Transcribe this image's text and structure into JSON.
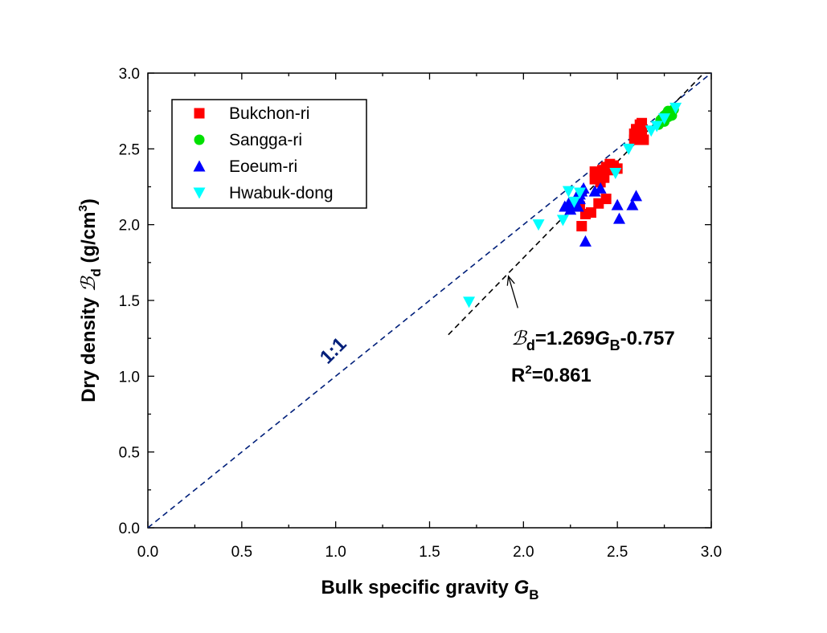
{
  "chart_data": {
    "type": "scatter",
    "title": "",
    "xlabel": {
      "main": "Bulk specific gravity ",
      "var": "G",
      "sub": "B"
    },
    "ylabel": {
      "main": "Dry density ",
      "sym": "ℬ",
      "sub": "d",
      "unit_pre": " (g/cm",
      "sup": "3",
      "unit_post": ")"
    },
    "xlim": [
      0.0,
      3.0
    ],
    "ylim": [
      0.0,
      3.0
    ],
    "x_ticks": [
      "0.0",
      "0.5",
      "1.0",
      "1.5",
      "2.0",
      "2.5",
      "3.0"
    ],
    "y_ticks": [
      "0.0",
      "0.5",
      "1.0",
      "1.5",
      "2.0",
      "2.5",
      "3.0"
    ],
    "grid": false,
    "legend_position": "top-left",
    "series": [
      {
        "name": "Bukchon-ri",
        "marker": "square",
        "color": "#ff0000",
        "points": [
          [
            2.31,
            1.99
          ],
          [
            2.33,
            2.07
          ],
          [
            2.36,
            2.08
          ],
          [
            2.4,
            2.14
          ],
          [
            2.44,
            2.17
          ],
          [
            2.3,
            2.12
          ],
          [
            2.38,
            2.3
          ],
          [
            2.4,
            2.33
          ],
          [
            2.42,
            2.36
          ],
          [
            2.44,
            2.38
          ],
          [
            2.38,
            2.35
          ],
          [
            2.46,
            2.4
          ],
          [
            2.48,
            2.39
          ],
          [
            2.43,
            2.31
          ],
          [
            2.41,
            2.28
          ],
          [
            2.47,
            2.36
          ],
          [
            2.5,
            2.37
          ],
          [
            2.59,
            2.6
          ],
          [
            2.6,
            2.63
          ],
          [
            2.62,
            2.66
          ],
          [
            2.63,
            2.61
          ],
          [
            2.64,
            2.56
          ],
          [
            2.61,
            2.58
          ],
          [
            2.59,
            2.56
          ],
          [
            2.63,
            2.67
          ]
        ]
      },
      {
        "name": "Sangga-ri",
        "marker": "circle",
        "color": "#00e000",
        "points": [
          [
            2.72,
            2.66
          ],
          [
            2.73,
            2.69
          ],
          [
            2.74,
            2.7
          ],
          [
            2.75,
            2.72
          ],
          [
            2.76,
            2.73
          ],
          [
            2.77,
            2.75
          ],
          [
            2.78,
            2.74
          ],
          [
            2.79,
            2.72
          ],
          [
            2.75,
            2.68
          ],
          [
            2.77,
            2.71
          ],
          [
            2.8,
            2.76
          ]
        ]
      },
      {
        "name": "Eoeum-ri",
        "marker": "triangle-up",
        "color": "#0000ff",
        "points": [
          [
            2.22,
            2.12
          ],
          [
            2.24,
            2.14
          ],
          [
            2.25,
            2.13
          ],
          [
            2.27,
            2.15
          ],
          [
            2.28,
            2.18
          ],
          [
            2.3,
            2.2
          ],
          [
            2.31,
            2.22
          ],
          [
            2.32,
            2.24
          ],
          [
            2.29,
            2.12
          ],
          [
            2.33,
            1.89
          ],
          [
            2.38,
            2.22
          ],
          [
            2.41,
            2.24
          ],
          [
            2.5,
            2.13
          ],
          [
            2.51,
            2.04
          ],
          [
            2.58,
            2.13
          ],
          [
            2.6,
            2.19
          ],
          [
            2.25,
            2.1
          ],
          [
            2.3,
            2.17
          ]
        ]
      },
      {
        "name": "Hwabuk-dong",
        "marker": "triangle-down",
        "color": "#00ffff",
        "points": [
          [
            1.71,
            1.49
          ],
          [
            2.08,
            2.0
          ],
          [
            2.21,
            2.03
          ],
          [
            2.24,
            2.22
          ],
          [
            2.27,
            2.15
          ],
          [
            2.3,
            2.21
          ],
          [
            2.49,
            2.34
          ],
          [
            2.56,
            2.5
          ],
          [
            2.68,
            2.62
          ],
          [
            2.71,
            2.65
          ],
          [
            2.75,
            2.7
          ],
          [
            2.81,
            2.77
          ]
        ]
      }
    ],
    "lines": [
      {
        "name": "1:1",
        "x": [
          0.0,
          3.0
        ],
        "y": [
          0.0,
          3.0
        ],
        "style": "dashed",
        "color": "#001f7a"
      },
      {
        "name": "fit",
        "x": [
          1.6,
          2.96
        ],
        "y": [
          1.274,
          2.999
        ],
        "style": "dashed",
        "color": "#000000"
      }
    ],
    "annotations": {
      "line_label": "1:1",
      "equation": {
        "sym": "ℬ",
        "sub": "d",
        "lhs_rest": "=1.269",
        "var": "G",
        "var_sub": "B",
        "rhs": "-0.757"
      },
      "r2": {
        "pre": "R",
        "sup": "2",
        "post": "=0.861"
      },
      "arrow": {
        "from": [
          1.97,
          1.45
        ],
        "to": [
          1.92,
          1.66
        ]
      }
    }
  }
}
